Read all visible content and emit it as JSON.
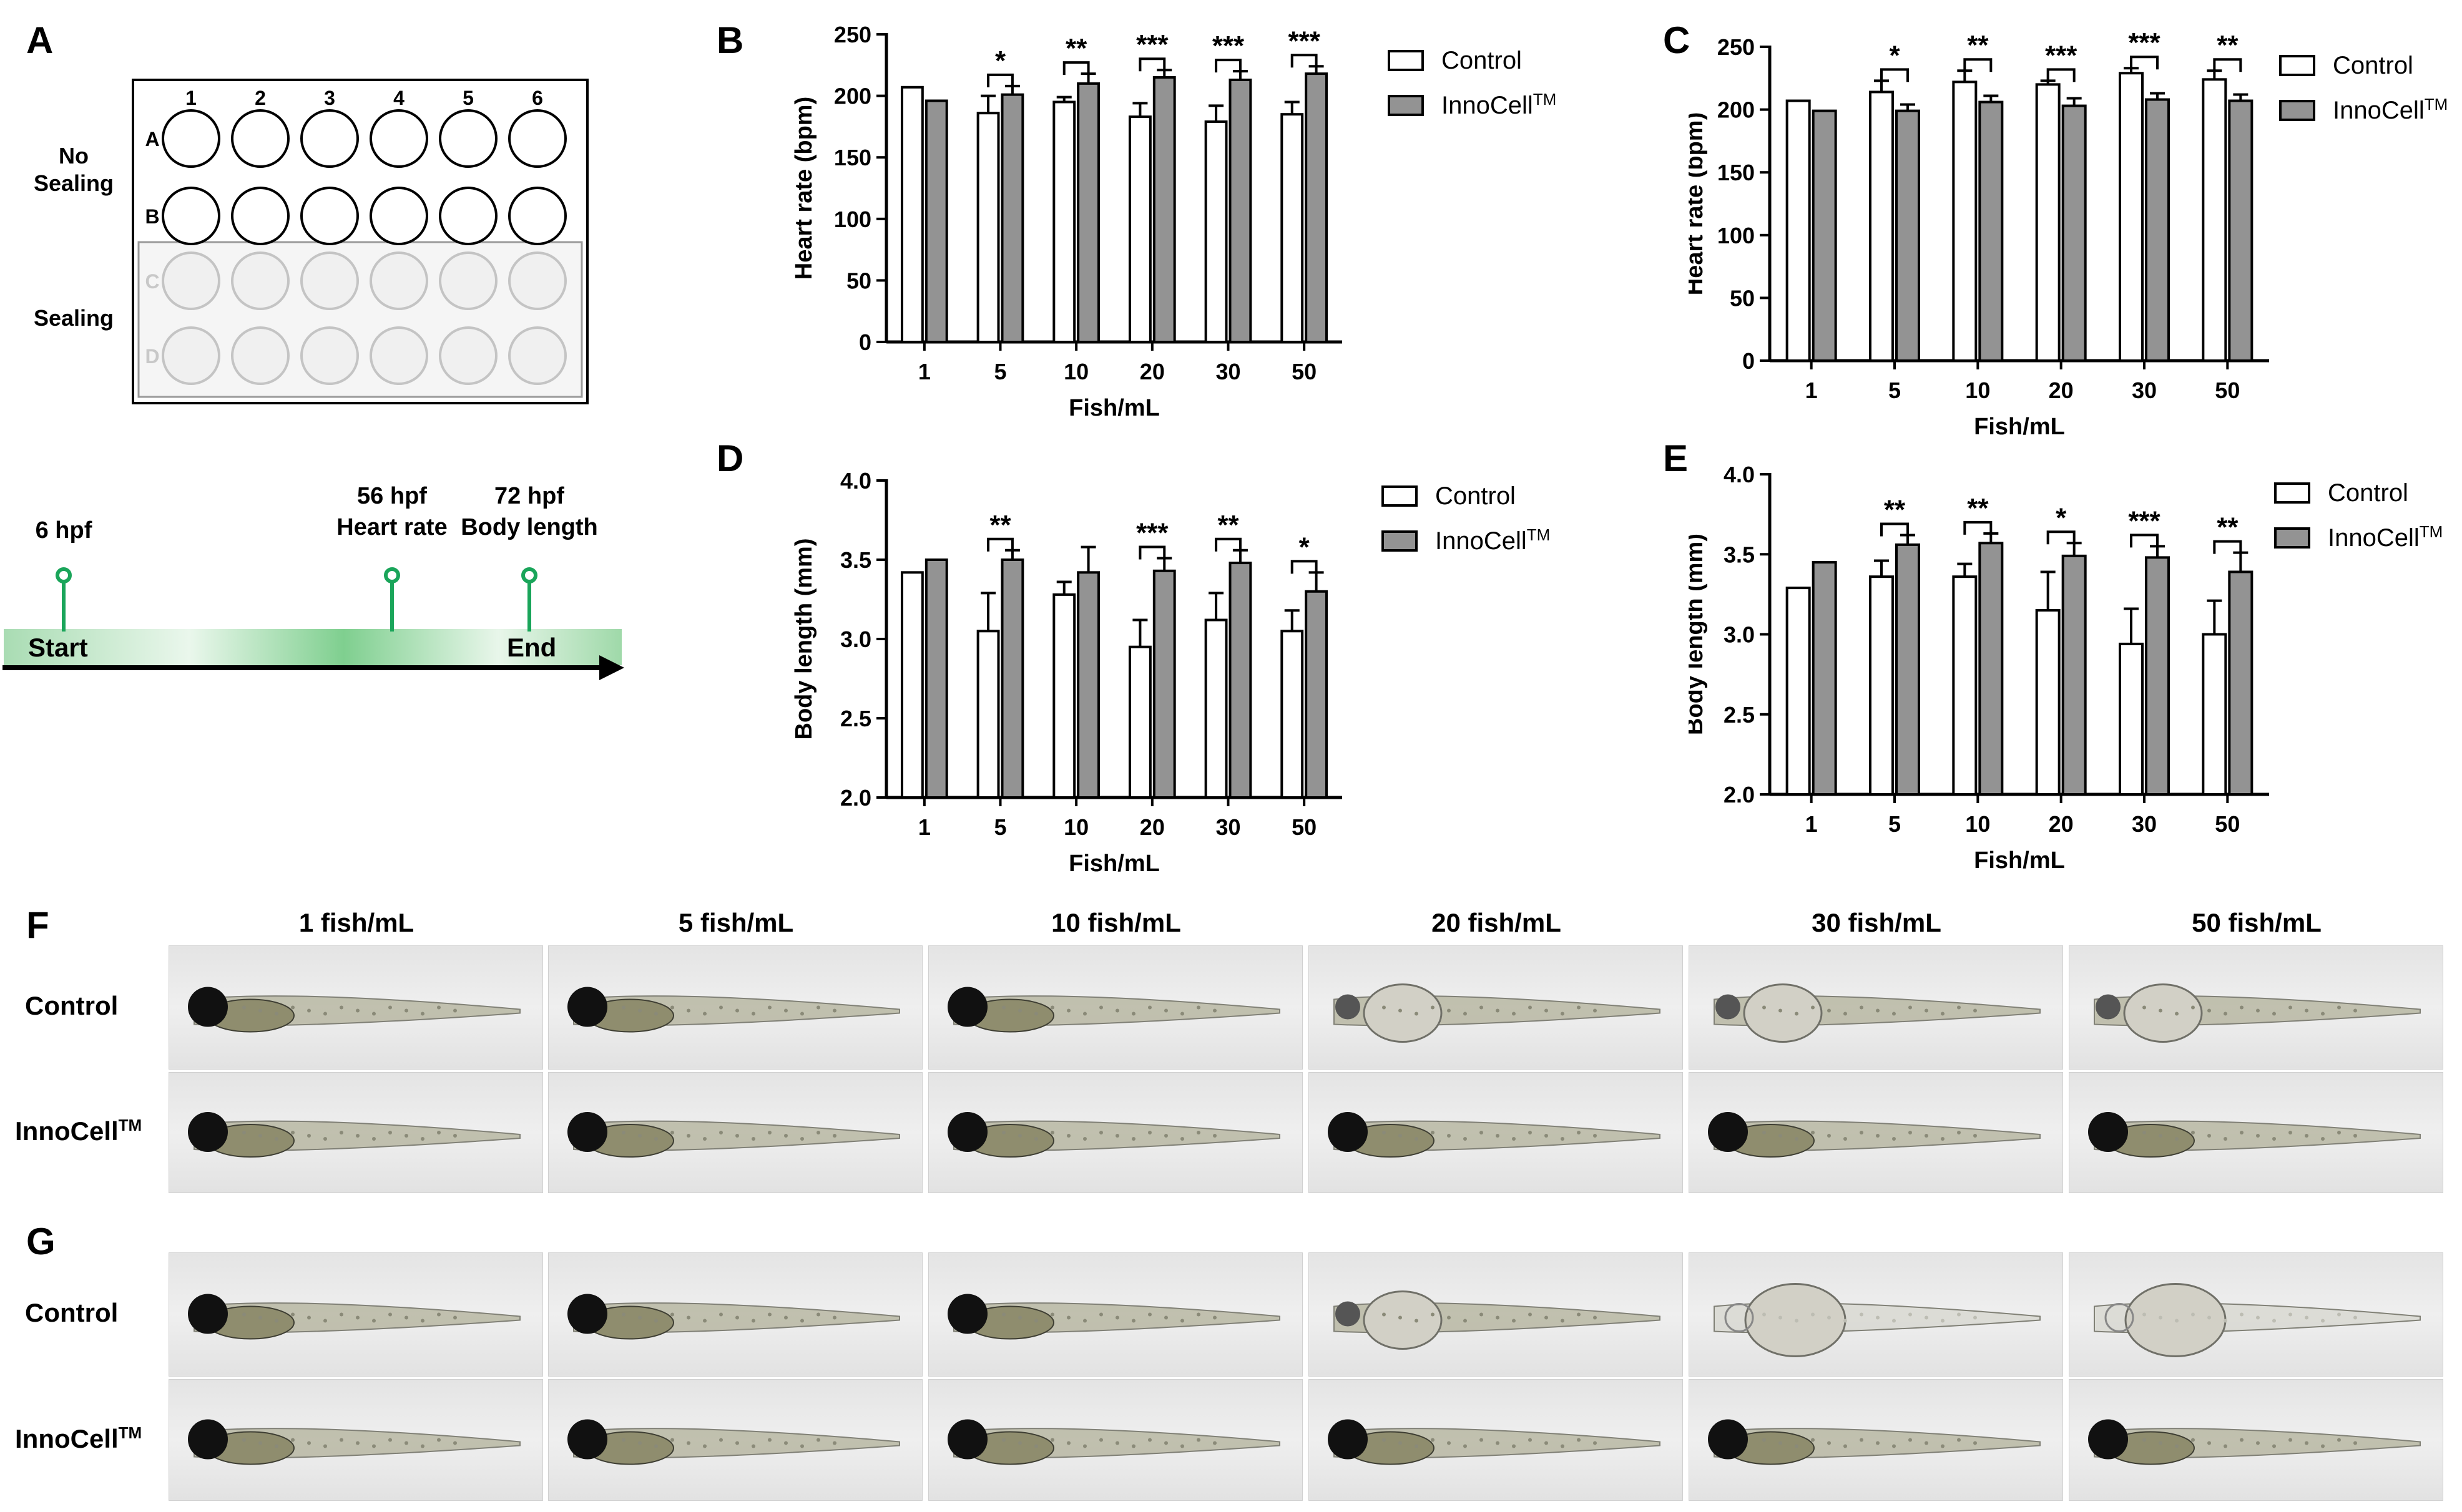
{
  "panels": {
    "A": "A",
    "B": "B",
    "C": "C",
    "D": "D",
    "E": "E",
    "F": "F",
    "G": "G"
  },
  "plate": {
    "columns": [
      "1",
      "2",
      "3",
      "4",
      "5",
      "6"
    ],
    "rows": [
      "A",
      "B",
      "C",
      "D"
    ],
    "no_sealing_label": "No\nSealing",
    "sealing_label": "Sealing"
  },
  "timeline": {
    "events": [
      {
        "label": "6 hpf"
      },
      {
        "label": "56 hpf\nHeart rate"
      },
      {
        "label": "72 hpf\nBody length"
      }
    ],
    "start_label": "Start",
    "end_label": "End"
  },
  "legend": {
    "control": "Control",
    "innocell": "InnoCell",
    "tm": "TM"
  },
  "colors": {
    "control": "#ffffff",
    "innocell": "#939393",
    "timeline": "#1aa55a"
  },
  "chart_data": [
    {
      "panel": "B",
      "type": "bar",
      "categories": [
        "1",
        "5",
        "10",
        "20",
        "30",
        "50"
      ],
      "xlabel": "Fish/mL",
      "ylabel": "Heart rate (bpm)",
      "ylim": [
        0,
        250
      ],
      "yticks": [
        0,
        50,
        100,
        150,
        200,
        250
      ],
      "series": [
        {
          "name": "Control",
          "values": [
            207,
            186,
            195,
            183,
            179,
            185
          ],
          "errors": [
            0,
            14,
            4,
            11,
            13,
            10
          ]
        },
        {
          "name": "InnoCell",
          "values": [
            196,
            201,
            210,
            215,
            213,
            218
          ],
          "errors": [
            0,
            7,
            8,
            6,
            7,
            6
          ]
        }
      ],
      "significance": [
        "",
        "*",
        "**",
        "***",
        "***",
        "***"
      ]
    },
    {
      "panel": "C",
      "type": "bar",
      "categories": [
        "1",
        "5",
        "10",
        "20",
        "30",
        "50"
      ],
      "xlabel": "Fish/mL",
      "ylabel": "Heart rate (bpm)",
      "ylim": [
        0,
        250
      ],
      "yticks": [
        0,
        50,
        100,
        150,
        200,
        250
      ],
      "series": [
        {
          "name": "Control",
          "values": [
            207,
            214,
            222,
            220,
            229,
            224
          ],
          "errors": [
            0,
            9,
            9,
            3,
            4,
            7
          ]
        },
        {
          "name": "InnoCell",
          "values": [
            199,
            199,
            206,
            203,
            208,
            207
          ],
          "errors": [
            0,
            5,
            5,
            6,
            5,
            5
          ]
        }
      ],
      "significance": [
        "",
        "*",
        "**",
        "***",
        "***",
        "**"
      ]
    },
    {
      "panel": "D",
      "type": "bar",
      "categories": [
        "1",
        "5",
        "10",
        "20",
        "30",
        "50"
      ],
      "xlabel": "Fish/mL",
      "ylabel": "Body length (mm)",
      "ylim": [
        2.0,
        4.0
      ],
      "yticks": [
        "2.0",
        "2.5",
        "3.0",
        "3.5",
        "4.0"
      ],
      "series": [
        {
          "name": "Control",
          "values": [
            3.42,
            3.05,
            3.28,
            2.95,
            3.12,
            3.05
          ],
          "errors": [
            0,
            0.24,
            0.08,
            0.17,
            0.17,
            0.13
          ]
        },
        {
          "name": "InnoCell",
          "values": [
            3.5,
            3.5,
            3.42,
            3.43,
            3.48,
            3.3
          ],
          "errors": [
            0,
            0.06,
            0.16,
            0.08,
            0.08,
            0.12
          ]
        }
      ],
      "significance": [
        "",
        "**",
        "",
        "***",
        "**",
        "*"
      ]
    },
    {
      "panel": "E",
      "type": "bar",
      "categories": [
        "1",
        "5",
        "10",
        "20",
        "30",
        "50"
      ],
      "xlabel": "Fish/mL",
      "ylabel": "Body length (mm)",
      "ylim": [
        2.0,
        4.0
      ],
      "yticks": [
        "2.0",
        "2.5",
        "3.0",
        "3.5",
        "4.0"
      ],
      "series": [
        {
          "name": "Control",
          "values": [
            3.29,
            3.36,
            3.36,
            3.15,
            2.94,
            3.0
          ],
          "errors": [
            0,
            0.1,
            0.08,
            0.24,
            0.22,
            0.21
          ]
        },
        {
          "name": "InnoCell",
          "values": [
            3.45,
            3.56,
            3.57,
            3.49,
            3.48,
            3.39
          ],
          "errors": [
            0,
            0.06,
            0.06,
            0.08,
            0.07,
            0.12
          ]
        }
      ],
      "significance": [
        "",
        "**",
        "**",
        "*",
        "***",
        "**"
      ]
    }
  ],
  "images": {
    "column_headers": [
      "1 fish/mL",
      "5 fish/mL",
      "10 fish/mL",
      "20 fish/mL",
      "30 fish/mL",
      "50 fish/mL"
    ],
    "row_label_control": "Control",
    "row_label_innocell": "InnoCell",
    "row_label_tm": "TM"
  }
}
